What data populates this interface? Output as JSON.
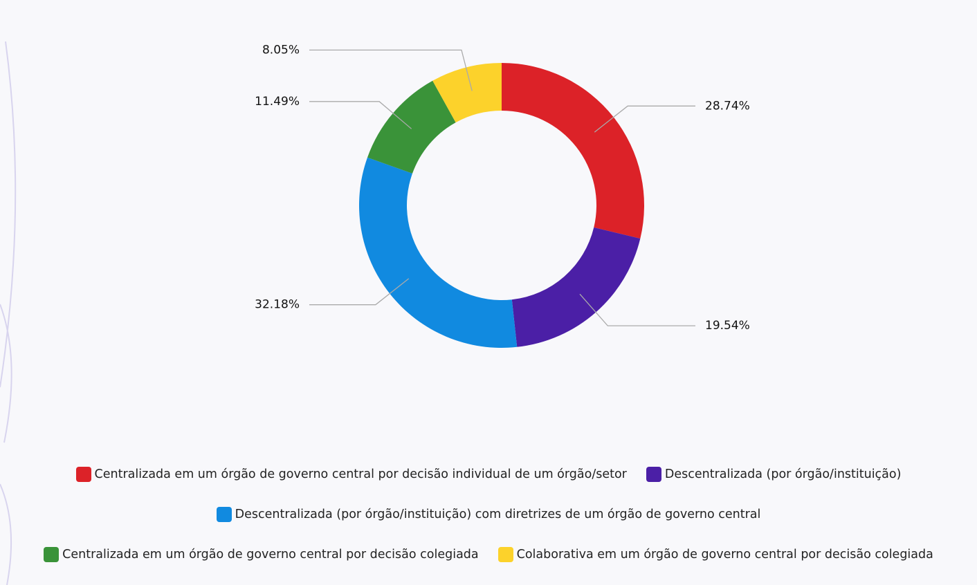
{
  "chart_data": {
    "type": "donut",
    "categories": [
      "Centralizada em um órgão de governo central por decisão individual de um órgão/setor",
      "Descentralizada (por órgão/instituição)",
      "Descentralizada (por órgão/instituição) com diretrizes de um órgão de governo central",
      "Centralizada em um órgão de governo central por decisão colegiada",
      "Colaborativa em um órgão de governo central por decisão colegiada"
    ],
    "values": [
      28.74,
      19.54,
      32.18,
      11.49,
      8.05
    ],
    "value_labels": [
      "28.74%",
      "19.54%",
      "32.18%",
      "11.49%",
      "8.05%"
    ],
    "colors": [
      "#dc2228",
      "#4b1fa6",
      "#118ae0",
      "#3a9339",
      "#fcd22b"
    ],
    "legend": "bottom"
  }
}
